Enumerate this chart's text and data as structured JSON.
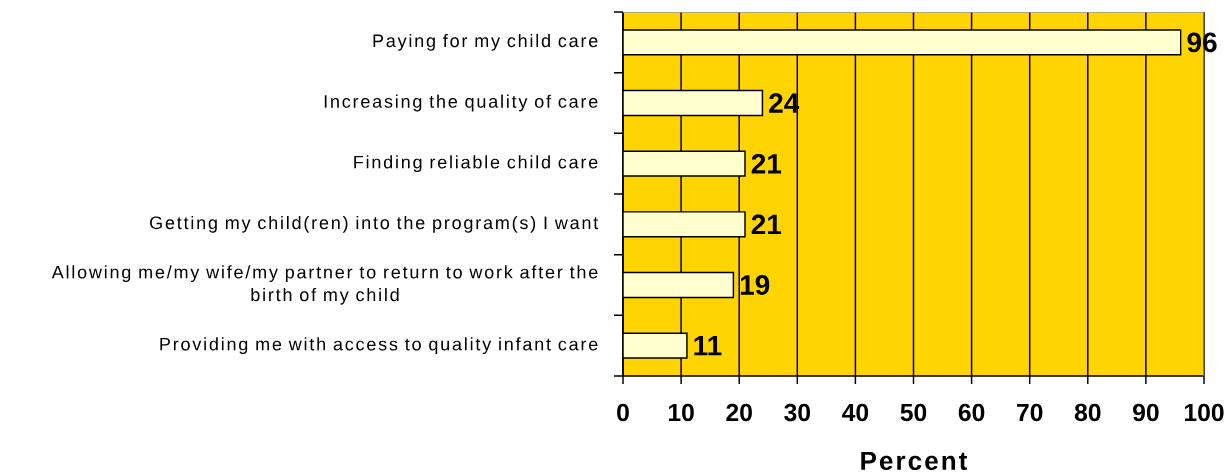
{
  "chart_data": {
    "type": "bar",
    "orientation": "horizontal",
    "categories": [
      "Paying for my child care",
      "Increasing the quality of care",
      "Finding reliable child care",
      "Getting my child(ren) into the program(s) I want",
      "Allowing me/my wife/my partner to return to work after the birth of my child",
      "Providing me with access to quality infant care"
    ],
    "values": [
      96,
      24,
      21,
      21,
      19,
      11
    ],
    "color": "#ffffd0",
    "xlim": [
      0,
      100
    ],
    "xticks": [
      0,
      10,
      20,
      30,
      40,
      50,
      60,
      70,
      80,
      90,
      100
    ],
    "xlabel": "Percent",
    "grid": "x",
    "data_labels": true
  }
}
